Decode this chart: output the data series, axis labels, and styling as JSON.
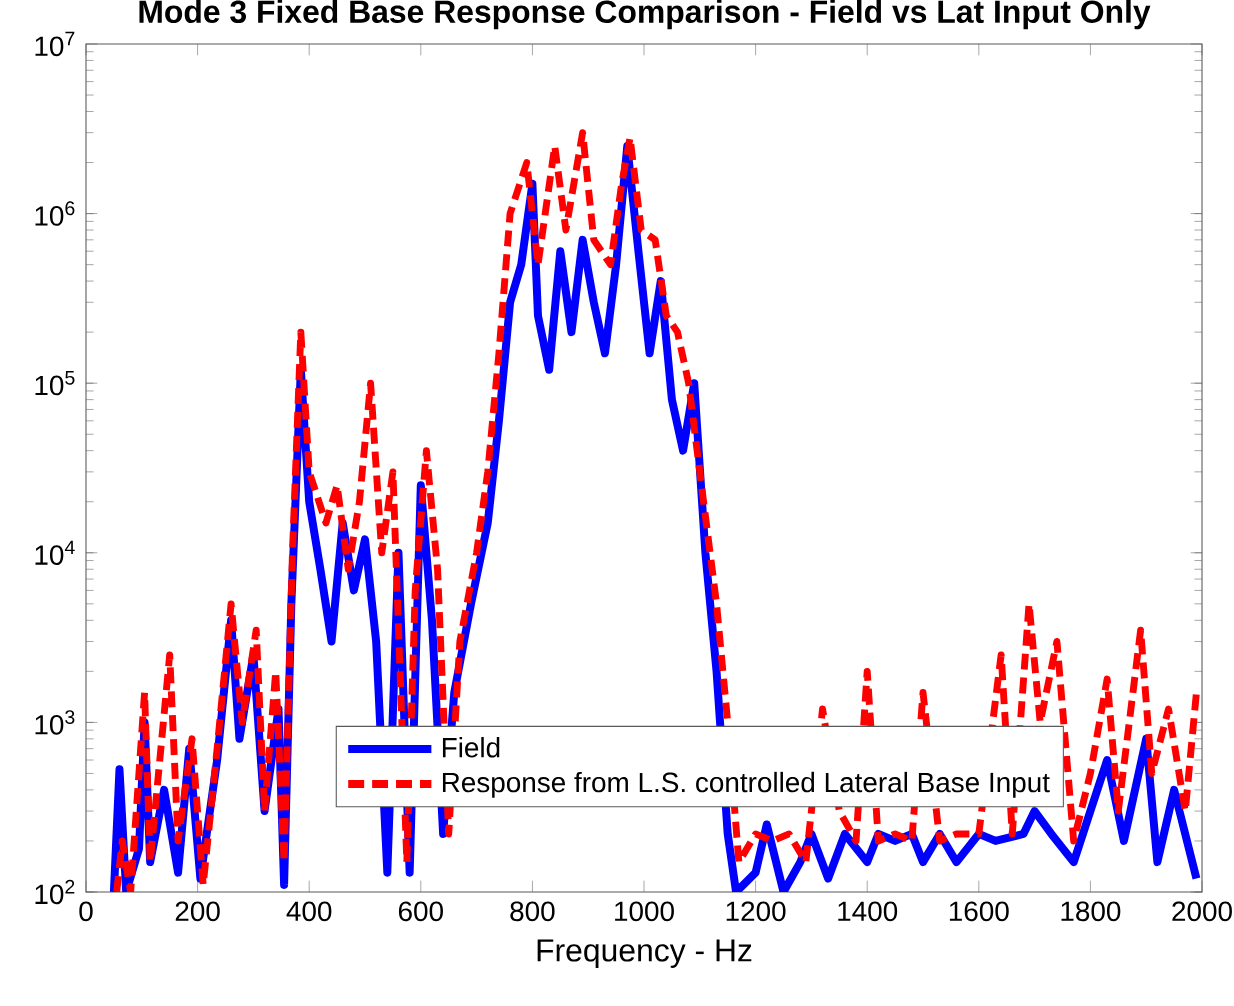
{
  "chart_data": {
    "type": "line",
    "title": "Mode 3 Fixed Base Response Comparison - Field vs Lat Input Only",
    "xlabel": "Frequency - Hz",
    "log": "y",
    "legend": "bottom",
    "grid": false,
    "xlim": [
      0,
      2000
    ],
    "xticks": [
      0,
      200,
      400,
      600,
      800,
      1000,
      1200,
      1400,
      1600,
      1800,
      2000
    ],
    "ylim": [
      100,
      10000000
    ],
    "yticks": [
      {
        "value": 100,
        "label": "10$^{2}$"
      },
      {
        "value": 1000,
        "label": "10$^{3}$"
      },
      {
        "value": 10000,
        "label": "10$^{4}$"
      },
      {
        "value": 100000,
        "label": "10$^{5}$"
      },
      {
        "value": 1000000,
        "label": "10$^{6}$"
      },
      {
        "value": 10000000,
        "label": "10$^{7}$"
      }
    ],
    "series": [
      {
        "name": "Field",
        "color": "#0000ff",
        "line_style": "solid",
        "x": [
          50,
          60,
          72,
          95,
          105,
          115,
          140,
          165,
          185,
          205,
          235,
          260,
          275,
          300,
          320,
          345,
          355,
          368,
          385,
          400,
          420,
          440,
          460,
          480,
          500,
          520,
          540,
          560,
          580,
          600,
          620,
          640,
          660,
          690,
          720,
          740,
          760,
          780,
          800,
          810,
          830,
          850,
          870,
          890,
          910,
          930,
          950,
          970,
          990,
          1010,
          1030,
          1050,
          1070,
          1090,
          1110,
          1130,
          1150,
          1165,
          1200,
          1220,
          1250,
          1280,
          1300,
          1330,
          1360,
          1400,
          1420,
          1450,
          1480,
          1500,
          1530,
          1560,
          1600,
          1630,
          1680,
          1700,
          1730,
          1770,
          1800,
          1830,
          1860,
          1900,
          1920,
          1950,
          1990
        ],
        "values": [
          100,
          530,
          100,
          180,
          1000,
          150,
          400,
          130,
          700,
          120,
          600,
          4000,
          800,
          2500,
          300,
          1200,
          110,
          5000,
          120000,
          20000,
          8000,
          3000,
          15000,
          6000,
          12000,
          3000,
          130,
          10000,
          130,
          25000,
          4000,
          220,
          1500,
          5000,
          15000,
          60000,
          300000,
          500000,
          1500000,
          250000,
          120000,
          600000,
          200000,
          700000,
          300000,
          150000,
          500000,
          2500000,
          600000,
          150000,
          400000,
          80000,
          40000,
          100000,
          10000,
          2000,
          220,
          100,
          130,
          250,
          100,
          150,
          220,
          120,
          220,
          150,
          220,
          200,
          220,
          150,
          220,
          150,
          220,
          200,
          220,
          300,
          220,
          150,
          300,
          600,
          200,
          800,
          150,
          400,
          120
        ]
      },
      {
        "name": "Response from L.S. controlled Lateral Base Input",
        "color": "#ff0000",
        "line_style": "dashed",
        "x": [
          55,
          65,
          80,
          105,
          115,
          150,
          165,
          190,
          210,
          235,
          260,
          280,
          305,
          320,
          340,
          355,
          370,
          385,
          400,
          430,
          450,
          470,
          490,
          510,
          530,
          550,
          575,
          590,
          610,
          630,
          650,
          670,
          700,
          720,
          740,
          760,
          790,
          810,
          840,
          860,
          890,
          910,
          940,
          960,
          975,
          995,
          1020,
          1040,
          1060,
          1080,
          1100,
          1130,
          1150,
          1170,
          1200,
          1230,
          1260,
          1290,
          1320,
          1350,
          1380,
          1400,
          1420,
          1450,
          1480,
          1500,
          1530,
          1560,
          1600,
          1640,
          1660,
          1690,
          1710,
          1740,
          1770,
          1800,
          1830,
          1850,
          1890,
          1910,
          1940,
          1970,
          1990
        ],
        "values": [
          100,
          200,
          100,
          1500,
          150,
          2500,
          200,
          800,
          110,
          700,
          5000,
          1000,
          3500,
          300,
          2000,
          150,
          10000,
          200000,
          30000,
          15000,
          25000,
          8000,
          20000,
          100000,
          10000,
          30000,
          150,
          6000,
          40000,
          8000,
          220,
          3000,
          10000,
          30000,
          150000,
          1000000,
          2000000,
          500000,
          2500000,
          800000,
          3000000,
          700000,
          500000,
          1500000,
          2800000,
          800000,
          700000,
          250000,
          200000,
          100000,
          30000,
          5000,
          1000,
          150,
          220,
          200,
          220,
          150,
          1200,
          300,
          200,
          2000,
          200,
          220,
          200,
          1500,
          200,
          220,
          220,
          2500,
          220,
          5000,
          1000,
          3000,
          200,
          500,
          1800,
          300,
          3500,
          500,
          1200,
          300,
          1500
        ]
      }
    ]
  }
}
